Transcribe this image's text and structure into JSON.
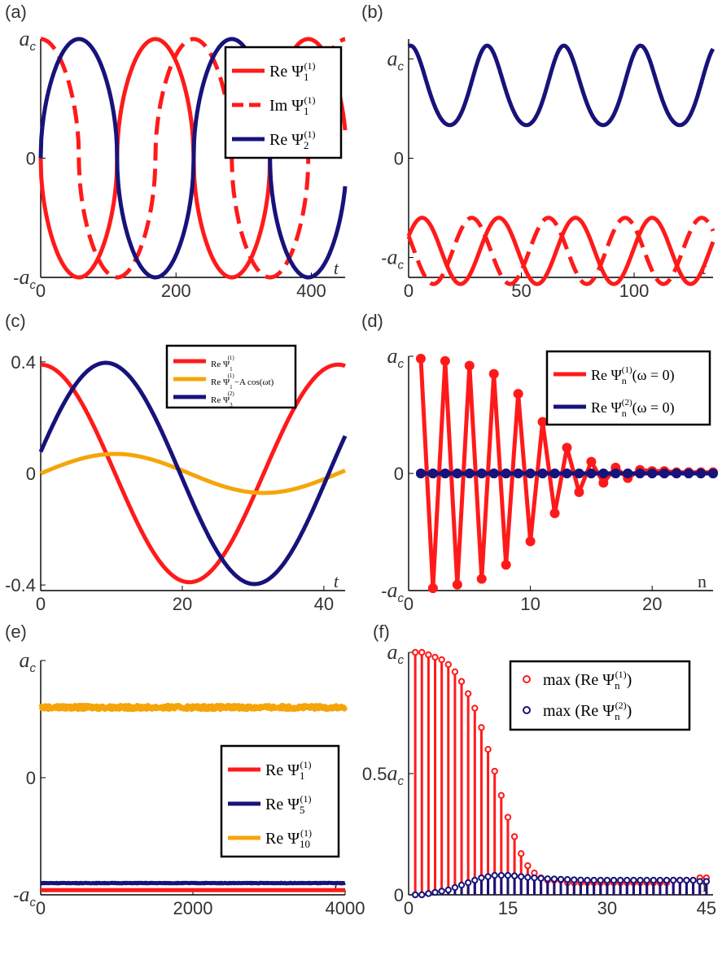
{
  "colors": {
    "red": "#ff1a1a",
    "navy": "#17137a",
    "orange": "#f5a50a",
    "axis": "#000000"
  },
  "chart_data": [
    {
      "panel": "(a)",
      "type": "line",
      "xlim": [
        0,
        450
      ],
      "ylim": [
        -1,
        1
      ],
      "xticks": [
        0,
        200,
        400
      ],
      "yticks": [
        {
          "v": 1,
          "t": "a_c"
        },
        {
          "v": 0,
          "t": "0"
        },
        {
          "v": -1,
          "t": "-a_c"
        }
      ],
      "xlabel": "t",
      "legend_position": "top-right",
      "series": [
        {
          "name": "Re Ψ_1^(1)",
          "color": "red",
          "dash": false,
          "func": "nsin_neg",
          "period": 226,
          "amp": 1
        },
        {
          "name": "Im Ψ_1^(1)",
          "color": "red",
          "dash": true,
          "func": "ncos",
          "period": 226,
          "amp": 1
        },
        {
          "name": "Re Ψ_2^(1)",
          "color": "navy",
          "dash": false,
          "func": "nsin",
          "period": 226,
          "amp": 1
        }
      ],
      "legend": [
        {
          "prefix": "Re",
          "sub": "1",
          "sup": "(1)",
          "color": "red",
          "dash": false
        },
        {
          "prefix": "Im",
          "sub": "1",
          "sup": "(1)",
          "color": "red",
          "dash": true
        },
        {
          "prefix": "Re",
          "sub": "2",
          "sup": "(1)",
          "color": "navy",
          "dash": false
        }
      ]
    },
    {
      "panel": "(b)",
      "type": "line",
      "xlim": [
        0,
        135
      ],
      "ylim": [
        -1.8,
        1.8
      ],
      "xticks": [
        0,
        50,
        100
      ],
      "yticks": [
        {
          "v": 1.5,
          "t": "a_c"
        },
        {
          "v": 0,
          "t": "0"
        },
        {
          "v": -1.5,
          "t": "-a_c"
        }
      ],
      "xlabel": "t",
      "series": [
        {
          "name": "blue",
          "color": "navy",
          "dash": false,
          "func": "bshape",
          "period": 34,
          "center": 1.1,
          "amp": 0.6
        },
        {
          "name": "red solid",
          "color": "red",
          "dash": false,
          "func": "rsolid",
          "period": 34,
          "center": -1.4,
          "amp": 0.5
        },
        {
          "name": "red dashed",
          "color": "red",
          "dash": true,
          "func": "rdash",
          "period": 34,
          "center": -1.4,
          "amp": 0.5
        }
      ]
    },
    {
      "panel": "(c)",
      "type": "line",
      "xlim": [
        0,
        43
      ],
      "ylim": [
        -0.42,
        0.42
      ],
      "xticks": [
        0,
        20,
        40
      ],
      "yticks": [
        {
          "v": 0.4,
          "t": "0.4"
        },
        {
          "v": 0,
          "t": "0"
        },
        {
          "v": -0.4,
          "t": "-0.4"
        }
      ],
      "xlabel": "t",
      "legend_position": "top-right",
      "series": [
        {
          "name": "Re Ψ_1^(1)",
          "color": "red",
          "func": "cos",
          "period": 42,
          "amp": 0.39,
          "phase": 0
        },
        {
          "name": "Re Ψ_1^(1) − A cos(ωt)",
          "color": "orange",
          "func": "sin",
          "period": 42,
          "amp": 0.07,
          "phase": 0
        },
        {
          "name": "Re Ψ_3^(2)",
          "color": "navy",
          "func": "sin",
          "period": 42,
          "amp": 0.39,
          "phase": 0.07
        }
      ],
      "legend": [
        {
          "prefix": "Re",
          "sub": "1",
          "sup": "(1)",
          "suffix": "",
          "color": "red"
        },
        {
          "prefix": "Re",
          "sub": "1",
          "sup": "(1)",
          "suffix": "−A cos(ωt)",
          "color": "orange"
        },
        {
          "prefix": "Re",
          "sub": "3",
          "sup": "(2)",
          "suffix": "",
          "color": "navy"
        }
      ]
    },
    {
      "panel": "(d)",
      "type": "line-markers",
      "xlim": [
        0,
        25
      ],
      "ylim": [
        -1,
        1
      ],
      "xticks": [
        0,
        10,
        20
      ],
      "yticks": [
        {
          "v": 1,
          "t": "a_c"
        },
        {
          "v": 0,
          "t": "0"
        },
        {
          "v": -1,
          "t": "-a_c"
        }
      ],
      "xlabel": "n",
      "series": [
        {
          "name": "Re Ψ_n^(1)(ω=0)",
          "color": "red",
          "x": [
            1,
            2,
            3,
            4,
            5,
            6,
            7,
            8,
            9,
            10,
            11,
            12,
            13,
            14,
            15,
            16,
            17,
            18,
            19,
            20,
            21,
            22,
            23,
            24,
            25
          ],
          "y": [
            0.98,
            -0.98,
            0.96,
            -0.95,
            0.92,
            -0.9,
            0.85,
            -0.78,
            0.68,
            -0.58,
            0.44,
            -0.34,
            0.22,
            -0.16,
            0.1,
            -0.08,
            0.05,
            -0.04,
            0.03,
            0.02,
            0.02,
            0.01,
            0.01,
            0.01,
            0.01
          ]
        },
        {
          "name": "Re Ψ_n^(2)(ω=0)",
          "color": "navy",
          "x": [
            1,
            2,
            3,
            4,
            5,
            6,
            7,
            8,
            9,
            10,
            11,
            12,
            13,
            14,
            15,
            16,
            17,
            18,
            19,
            20,
            21,
            22,
            23,
            24,
            25
          ],
          "y": [
            0,
            0,
            0,
            0,
            0,
            0,
            0,
            0,
            0,
            0,
            0,
            0,
            0,
            0,
            0,
            0,
            0,
            0,
            0,
            0,
            0,
            0,
            0,
            0,
            0
          ]
        }
      ],
      "legend": [
        {
          "prefix": "Re",
          "sub": "n",
          "sup": "(1)",
          "suffix": "(ω = 0)",
          "color": "red"
        },
        {
          "prefix": "Re",
          "sub": "n",
          "sup": "(2)",
          "suffix": "(ω = 0)",
          "color": "navy"
        }
      ]
    },
    {
      "panel": "(e)",
      "type": "line",
      "xlim": [
        0,
        4000
      ],
      "ylim": [
        -1,
        1
      ],
      "xticks": [
        0,
        2000,
        4000
      ],
      "yticks": [
        {
          "v": 1,
          "t": "a_c"
        },
        {
          "v": 0,
          "t": "0"
        },
        {
          "v": -1,
          "t": "-a_c"
        }
      ],
      "xlabel": "t",
      "series": [
        {
          "name": "Re Ψ_1^(1)",
          "color": "red",
          "level": -0.96,
          "noise": 0.0
        },
        {
          "name": "Re Ψ_5^(1)",
          "color": "navy",
          "level": -0.9,
          "noise": 0.005
        },
        {
          "name": "Re Ψ_10^(1)",
          "color": "orange",
          "level": 0.6,
          "noise": 0.03
        }
      ],
      "legend": [
        {
          "prefix": "Re",
          "sub": "1",
          "sup": "(1)",
          "color": "red"
        },
        {
          "prefix": "Re",
          "sub": "5",
          "sup": "(1)",
          "color": "navy"
        },
        {
          "prefix": "Re",
          "sub": "10",
          "sup": "(1)",
          "color": "orange"
        }
      ]
    },
    {
      "panel": "(f)",
      "type": "stem",
      "xlim": [
        0,
        46
      ],
      "ylim": [
        0,
        1
      ],
      "xticks": [
        0,
        15,
        30,
        45
      ],
      "yticks": [
        {
          "v": 1,
          "t": "a_c"
        },
        {
          "v": 0.5,
          "t": "0.5a_c"
        },
        {
          "v": 0,
          "t": "0"
        }
      ],
      "xlabel": "n",
      "series": [
        {
          "name": "max(Re Ψ_n^(1))",
          "color": "red",
          "y": [
            1.0,
            1.0,
            0.99,
            0.98,
            0.97,
            0.95,
            0.92,
            0.88,
            0.83,
            0.77,
            0.69,
            0.6,
            0.51,
            0.41,
            0.32,
            0.24,
            0.17,
            0.12,
            0.09,
            0.07,
            0.06,
            0.06,
            0.06,
            0.05,
            0.05,
            0.05,
            0.05,
            0.05,
            0.05,
            0.05,
            0.05,
            0.05,
            0.05,
            0.05,
            0.05,
            0.05,
            0.05,
            0.05,
            0.05,
            0.06,
            0.06,
            0.06,
            0.06,
            0.07,
            0.07
          ]
        },
        {
          "name": "max(Re Ψ_n^(2))",
          "color": "navy",
          "y": [
            0.0,
            0.0,
            0.005,
            0.01,
            0.015,
            0.02,
            0.03,
            0.04,
            0.05,
            0.06,
            0.07,
            0.075,
            0.08,
            0.08,
            0.08,
            0.078,
            0.075,
            0.072,
            0.07,
            0.068,
            0.066,
            0.065,
            0.064,
            0.063,
            0.062,
            0.061,
            0.06,
            0.06,
            0.06,
            0.06,
            0.06,
            0.06,
            0.06,
            0.06,
            0.06,
            0.06,
            0.06,
            0.06,
            0.06,
            0.06,
            0.06,
            0.06,
            0.06,
            0.055,
            0.055
          ]
        }
      ],
      "legend": [
        {
          "prefix": "max (Re",
          "sub": "n",
          "sup": "(1)",
          "suffix": ")",
          "color": "red"
        },
        {
          "prefix": "max (Re",
          "sub": "n",
          "sup": "(2)",
          "suffix": ")",
          "color": "navy"
        }
      ]
    }
  ]
}
